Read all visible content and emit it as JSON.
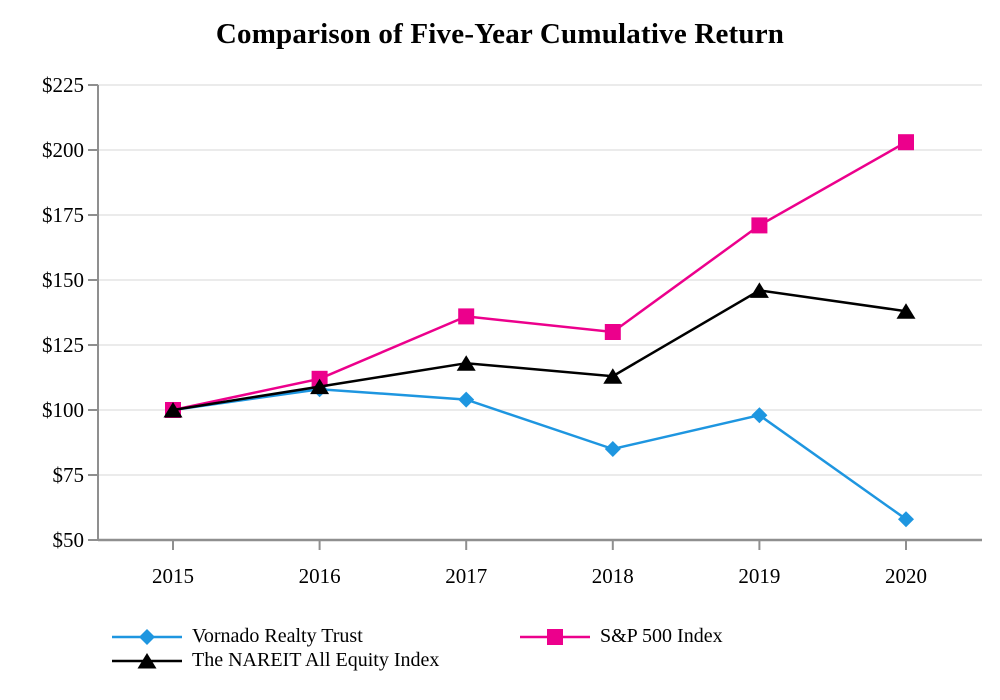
{
  "title": "Comparison of Five-Year Cumulative Return",
  "chart_data": {
    "type": "line",
    "title": "Comparison of Five-Year Cumulative Return",
    "categories": [
      "2015",
      "2016",
      "2017",
      "2018",
      "2019",
      "2020"
    ],
    "series": [
      {
        "name": "Vornado Realty Trust",
        "marker": "diamond",
        "color": "#1E96E0",
        "values": [
          100,
          108,
          104,
          85,
          98,
          58
        ]
      },
      {
        "name": "S&P 500 Index",
        "marker": "square",
        "color": "#EC008C",
        "values": [
          100,
          112,
          136,
          130,
          171,
          203
        ]
      },
      {
        "name": "The NAREIT All Equity Index",
        "marker": "triangle",
        "color": "#000000",
        "values": [
          100,
          109,
          118,
          113,
          146,
          138
        ]
      }
    ],
    "ylim": [
      50,
      225
    ],
    "y_tick_step": 25,
    "y_tick_labels": [
      "$50",
      "$75",
      "$100",
      "$125",
      "$150",
      "$175",
      "$200",
      "$225"
    ],
    "x_tick_labels": [
      "2015",
      "2016",
      "2017",
      "2018",
      "2019",
      "2020"
    ],
    "value_prefix": "$",
    "grid": true,
    "legend_position": "bottom-left two-column",
    "axis_color": "#8F8F8F",
    "grid_color": "#EBEBEB",
    "text_color": "#000000"
  }
}
